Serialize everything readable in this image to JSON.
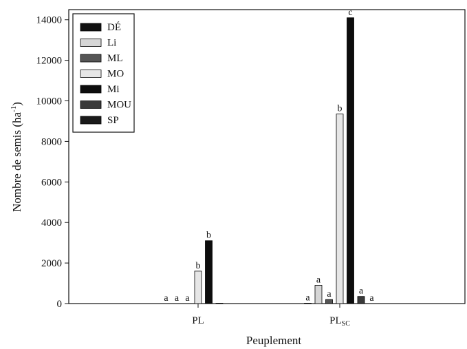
{
  "chart_data": {
    "type": "bar",
    "xlabel": "Peuplement",
    "ylabel": "Nombre de semis (ha",
    "ylabel_sup": "-1",
    "ylabel_close": ")",
    "ylim": [
      0,
      14500
    ],
    "yticks": [
      0,
      2000,
      4000,
      6000,
      8000,
      10000,
      12000,
      14000
    ],
    "legend_position": "top-left",
    "categories": [
      {
        "label": "PL",
        "sub": ""
      },
      {
        "label": "PL",
        "sub": "SC"
      }
    ],
    "series": [
      {
        "name": "DÉ",
        "fill": "#111111",
        "values": [
          0,
          20
        ],
        "letters": [
          "a",
          "a"
        ]
      },
      {
        "name": "Li",
        "fill": "#d6d6d6",
        "values": [
          0,
          900
        ],
        "letters": [
          "a",
          "a"
        ]
      },
      {
        "name": "ML",
        "fill": "#555555",
        "values": [
          0,
          200
        ],
        "letters": [
          "a",
          "a"
        ]
      },
      {
        "name": "MO",
        "fill": "#e6e6e6",
        "values": [
          1600,
          9350
        ],
        "letters": [
          "b",
          "b"
        ]
      },
      {
        "name": "Mi",
        "fill": "#0d0d0d",
        "values": [
          3100,
          14100
        ],
        "letters": [
          "b",
          "c"
        ]
      },
      {
        "name": "MOU",
        "fill": "#3a3a3a",
        "values": [
          20,
          350
        ],
        "letters": [
          "",
          "a"
        ]
      },
      {
        "name": "SP",
        "fill": "#1a1a1a",
        "values": [
          0,
          0
        ],
        "letters": [
          "",
          "a"
        ]
      }
    ]
  }
}
